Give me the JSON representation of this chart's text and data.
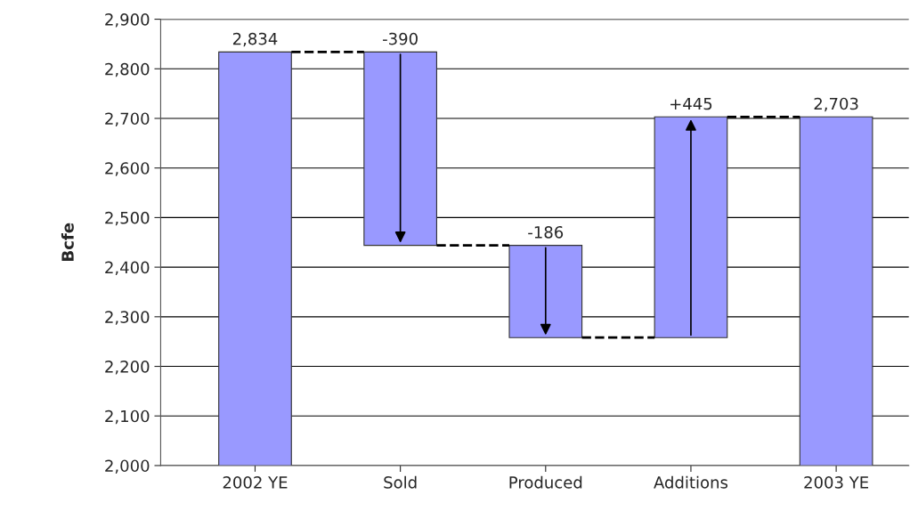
{
  "chart_data": {
    "type": "bar",
    "ylabel": "Bcfe",
    "categories": [
      "2002 YE",
      "Sold",
      "Produced",
      "Additions",
      "2003 YE"
    ],
    "values": [
      2834,
      -390,
      -186,
      445,
      2703
    ],
    "base": [
      null,
      2834,
      2444,
      2258,
      null
    ],
    "value_labels": [
      "2,834",
      "-390",
      "-186",
      "+445",
      "2,703"
    ],
    "color": "#9999ff",
    "ylim": [
      2000,
      2900
    ],
    "yticks": [
      {
        "value": 2000,
        "label": "2,000"
      },
      {
        "value": 2100,
        "label": "2,100"
      },
      {
        "value": 2200,
        "label": "2,200"
      },
      {
        "value": 2300,
        "label": "2,300"
      },
      {
        "value": 2400,
        "label": "2,400"
      },
      {
        "value": 2500,
        "label": "2,500"
      },
      {
        "value": 2600,
        "label": "2,600"
      },
      {
        "value": 2700,
        "label": "2,700"
      },
      {
        "value": 2800,
        "label": "2,800"
      },
      {
        "value": 2900,
        "label": "2,900"
      }
    ],
    "grid": "y"
  }
}
